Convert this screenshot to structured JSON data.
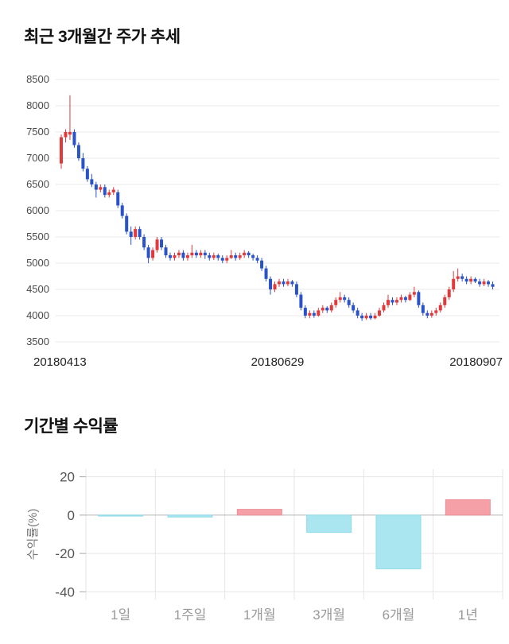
{
  "chart_data": [
    {
      "type": "candlestick",
      "title": "최근 3개월간 주가 추세",
      "ylim": [
        3500,
        8500
      ],
      "y_ticks": [
        8500,
        8000,
        7500,
        7000,
        6500,
        6000,
        5500,
        5000,
        4500,
        4000,
        3500
      ],
      "x_labels": [
        "20180413",
        "20180629",
        "20180907"
      ],
      "legend": "none",
      "grid": "horizontal",
      "up_color": "#e03a3c",
      "down_color": "#2a52c9",
      "grid_color": "#e9e9e9",
      "tick_color": "#4a4a4a",
      "x_label_color": "#222222",
      "candles": [
        [
          6900,
          7450,
          6800,
          7400
        ],
        [
          7400,
          7550,
          7300,
          7500
        ],
        [
          7450,
          8200,
          7350,
          7500
        ],
        [
          7500,
          7550,
          7200,
          7250
        ],
        [
          7250,
          7300,
          6950,
          7000
        ],
        [
          7000,
          7100,
          6750,
          6800
        ],
        [
          6800,
          6850,
          6550,
          6600
        ],
        [
          6600,
          6700,
          6450,
          6500
        ],
        [
          6500,
          6550,
          6250,
          6400
        ],
        [
          6400,
          6500,
          6350,
          6450
        ],
        [
          6450,
          6500,
          6250,
          6300
        ],
        [
          6300,
          6400,
          6250,
          6350
        ],
        [
          6350,
          6450,
          6300,
          6400
        ],
        [
          6350,
          6400,
          6050,
          6100
        ],
        [
          6100,
          6150,
          5850,
          5900
        ],
        [
          5900,
          5950,
          5550,
          5600
        ],
        [
          5600,
          5700,
          5350,
          5500
        ],
        [
          5500,
          5700,
          5450,
          5650
        ],
        [
          5650,
          5700,
          5450,
          5500
        ],
        [
          5500,
          5550,
          5250,
          5300
        ],
        [
          5300,
          5350,
          5000,
          5100
        ],
        [
          5100,
          5300,
          5050,
          5250
        ],
        [
          5250,
          5500,
          5200,
          5450
        ],
        [
          5450,
          5500,
          5250,
          5300
        ],
        [
          5300,
          5350,
          5100,
          5150
        ],
        [
          5150,
          5200,
          5050,
          5100
        ],
        [
          5100,
          5200,
          5050,
          5150
        ],
        [
          5150,
          5250,
          5100,
          5200
        ],
        [
          5200,
          5250,
          5050,
          5100
        ],
        [
          5100,
          5200,
          5050,
          5150
        ],
        [
          5150,
          5350,
          5100,
          5200
        ],
        [
          5200,
          5250,
          5100,
          5150
        ],
        [
          5150,
          5250,
          5100,
          5200
        ],
        [
          5200,
          5250,
          5080,
          5150
        ],
        [
          5150,
          5200,
          5050,
          5100
        ],
        [
          5100,
          5200,
          5060,
          5150
        ],
        [
          5150,
          5180,
          5050,
          5100
        ],
        [
          5100,
          5150,
          5000,
          5050
        ],
        [
          5050,
          5150,
          5000,
          5100
        ],
        [
          5100,
          5250,
          5080,
          5150
        ],
        [
          5150,
          5200,
          5050,
          5100
        ],
        [
          5100,
          5200,
          5060,
          5150
        ],
        [
          5150,
          5250,
          5100,
          5200
        ],
        [
          5200,
          5230,
          5100,
          5150
        ],
        [
          5150,
          5180,
          5050,
          5100
        ],
        [
          5100,
          5150,
          5000,
          5050
        ],
        [
          5050,
          5100,
          4850,
          4900
        ],
        [
          4900,
          4950,
          4650,
          4700
        ],
        [
          4700,
          4750,
          4400,
          4500
        ],
        [
          4500,
          4650,
          4450,
          4600
        ],
        [
          4600,
          4700,
          4550,
          4650
        ],
        [
          4650,
          4700,
          4550,
          4600
        ],
        [
          4600,
          4700,
          4560,
          4650
        ],
        [
          4650,
          4680,
          4550,
          4600
        ],
        [
          4600,
          4650,
          4350,
          4400
        ],
        [
          4400,
          4450,
          4100,
          4150
        ],
        [
          4150,
          4200,
          3950,
          4000
        ],
        [
          4000,
          4100,
          3950,
          4050
        ],
        [
          4050,
          4100,
          3960,
          4000
        ],
        [
          4000,
          4150,
          3980,
          4100
        ],
        [
          4100,
          4200,
          4050,
          4150
        ],
        [
          4150,
          4180,
          4050,
          4100
        ],
        [
          4100,
          4250,
          4060,
          4200
        ],
        [
          4200,
          4350,
          4150,
          4300
        ],
        [
          4300,
          4450,
          4250,
          4350
        ],
        [
          4350,
          4400,
          4250,
          4300
        ],
        [
          4300,
          4350,
          4150,
          4200
        ],
        [
          4200,
          4250,
          4050,
          4100
        ],
        [
          4100,
          4150,
          3950,
          4000
        ],
        [
          4000,
          4050,
          3900,
          3950
        ],
        [
          3950,
          4050,
          3920,
          4000
        ],
        [
          4000,
          4050,
          3920,
          3950
        ],
        [
          3950,
          4050,
          3930,
          4000
        ],
        [
          4000,
          4150,
          3980,
          4100
        ],
        [
          4100,
          4250,
          4060,
          4200
        ],
        [
          4200,
          4400,
          4150,
          4300
        ],
        [
          4300,
          4350,
          4200,
          4250
        ],
        [
          4250,
          4350,
          4200,
          4300
        ],
        [
          4300,
          4400,
          4250,
          4350
        ],
        [
          4350,
          4380,
          4250,
          4300
        ],
        [
          4300,
          4450,
          4280,
          4400
        ],
        [
          4400,
          4550,
          4350,
          4450
        ],
        [
          4450,
          4480,
          4150,
          4200
        ],
        [
          4200,
          4250,
          4000,
          4050
        ],
        [
          4050,
          4100,
          3950,
          4000
        ],
        [
          4000,
          4100,
          3960,
          4050
        ],
        [
          4050,
          4150,
          4000,
          4100
        ],
        [
          4100,
          4250,
          4060,
          4200
        ],
        [
          4200,
          4400,
          4150,
          4350
        ],
        [
          4350,
          4550,
          4300,
          4500
        ],
        [
          4500,
          4850,
          4450,
          4700
        ],
        [
          4700,
          4900,
          4650,
          4750
        ],
        [
          4750,
          4800,
          4650,
          4700
        ],
        [
          4700,
          4750,
          4600,
          4650
        ],
        [
          4650,
          4750,
          4600,
          4700
        ],
        [
          4700,
          4730,
          4620,
          4650
        ],
        [
          4650,
          4700,
          4550,
          4600
        ],
        [
          4600,
          4700,
          4560,
          4650
        ],
        [
          4650,
          4680,
          4550,
          4600
        ],
        [
          4600,
          4650,
          4500,
          4550
        ]
      ]
    },
    {
      "type": "bar",
      "title": "기간별 수익률",
      "ylabel": "수익률(%)",
      "categories": [
        "1일",
        "1주일",
        "1개월",
        "3개월",
        "6개월",
        "1년"
      ],
      "values": [
        -0.5,
        -1,
        3,
        -9,
        -28,
        8
      ],
      "y_ticks": [
        20,
        0,
        -20,
        -40
      ],
      "ylim": [
        -40,
        20
      ],
      "grid": "both",
      "legend": "none",
      "positive_color": "#f5a0a7",
      "negative_color": "#a9e6f0",
      "positive_border": "#ee8e96",
      "negative_border": "#8fdbe8",
      "grid_color": "#e6e6e6",
      "zero_line_color": "#b5b5b5",
      "tick_color": "#555555",
      "category_color": "#999999",
      "ylabel_color": "#777777"
    }
  ]
}
